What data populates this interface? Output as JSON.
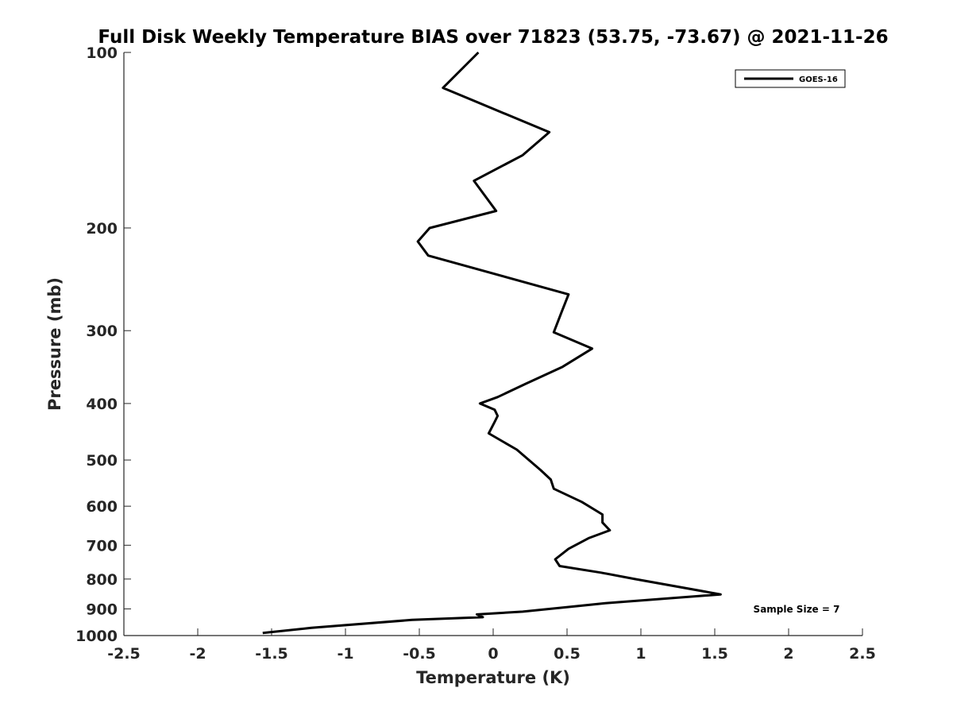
{
  "chart_data": {
    "type": "line",
    "title": "Full Disk Weekly Temperature BIAS over 71823 (53.75, -73.67) @ 2021-11-26",
    "xlabel": "Temperature (K)",
    "ylabel": "Pressure (mb)",
    "xlim": [
      -2.5,
      2.5
    ],
    "ylim": [
      100,
      1000
    ],
    "y_scale": "log",
    "y_reversed": true,
    "x_ticks": [
      -2.5,
      -2,
      -1.5,
      -1,
      -0.5,
      0,
      0.5,
      1,
      1.5,
      2,
      2.5
    ],
    "x_tick_labels": [
      "-2.5",
      "-2",
      "-1.5",
      "-1",
      "-0.5",
      "0",
      "0.5",
      "1",
      "1.5",
      "2",
      "2.5"
    ],
    "y_ticks": [
      100,
      200,
      300,
      400,
      500,
      600,
      700,
      800,
      900,
      1000
    ],
    "y_tick_labels": [
      "100",
      "200",
      "300",
      "400",
      "500",
      "600",
      "700",
      "800",
      "900",
      "1000"
    ],
    "grid": false,
    "legend_position": "top-right",
    "annotation": "Sample Size = 7",
    "colors": {
      "line": "#000000",
      "axes": "#262626"
    },
    "series": [
      {
        "name": "GOES-16",
        "x": [
          -0.1,
          -0.34,
          0.38,
          0.2,
          -0.13,
          0.02,
          -0.43,
          -0.51,
          -0.44,
          0.51,
          0.46,
          0.41,
          0.67,
          0.47,
          0.22,
          0.03,
          -0.09,
          0.01,
          0.03,
          0.01,
          -0.03,
          0.16,
          0.32,
          0.39,
          0.41,
          0.6,
          0.74,
          0.74,
          0.79,
          0.65,
          0.51,
          0.42,
          0.45,
          0.73,
          0.96,
          1.54,
          0.76,
          0.2,
          -0.11,
          -0.07,
          -0.55,
          -1.23,
          -1.56
        ],
        "y": [
          100,
          115,
          137,
          150,
          166,
          187,
          200,
          211,
          223,
          260,
          280,
          302,
          322,
          346,
          370,
          390,
          400,
          410,
          420,
          430,
          450,
          480,
          520,
          540,
          560,
          590,
          620,
          640,
          660,
          680,
          710,
          740,
          760,
          780,
          800,
          850,
          880,
          910,
          920,
          930,
          940,
          970,
          990
        ]
      }
    ]
  }
}
